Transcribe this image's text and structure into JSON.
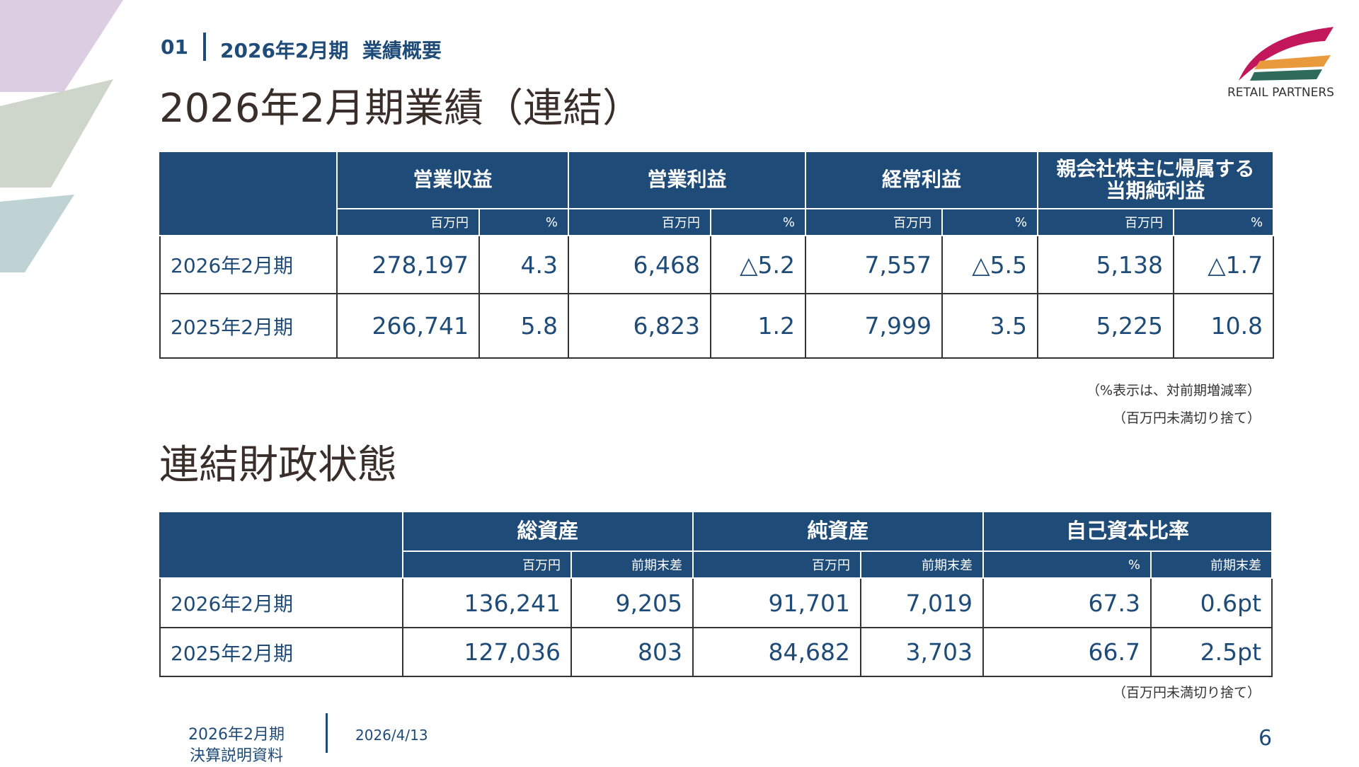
{
  "header": {
    "section_number": "01",
    "section_title": "2026年2月期  業績概要"
  },
  "logo": {
    "text": "RETAIL PARTNERS"
  },
  "results": {
    "title": "2026年2月期業績（連結）",
    "columns": [
      "営業収益",
      "営業利益",
      "経常利益",
      "親会社株主に帰属する\n当期純利益"
    ],
    "units": [
      "百万円",
      "%",
      "百万円",
      "%",
      "百万円",
      "%",
      "百万円",
      "%"
    ],
    "rows": [
      {
        "label": "2026年2月期",
        "values": [
          "278,197",
          "4.3",
          "6,468",
          "△5.2",
          "7,557",
          "△5.5",
          "5,138",
          "△1.7"
        ]
      },
      {
        "label": "2025年2月期",
        "values": [
          "266,741",
          "5.8",
          "6,823",
          "1.2",
          "7,999",
          "3.5",
          "5,225",
          "10.8"
        ]
      }
    ],
    "notes": [
      "（%表示は、対前期増減率）",
      "（百万円未満切り捨て）"
    ]
  },
  "balance": {
    "title": "連結財政状態",
    "columns": [
      "総資産",
      "純資産",
      "自己資本比率"
    ],
    "units": [
      "百万円",
      "前期末差",
      "百万円",
      "前期末差",
      "%",
      "前期末差"
    ],
    "rows": [
      {
        "label": "2026年2月期",
        "values": [
          "136,241",
          "9,205",
          "91,701",
          "7,019",
          "67.3",
          "0.6pt"
        ]
      },
      {
        "label": "2025年2月期",
        "values": [
          "127,036",
          "803",
          "84,682",
          "3,703",
          "66.7",
          "2.5pt"
        ]
      }
    ],
    "notes": [
      "（百万円未満切り捨て）"
    ]
  },
  "footer": {
    "document": [
      "2026年2月期",
      "決算説明資料"
    ],
    "date": "2026/4/13",
    "page": "6"
  }
}
